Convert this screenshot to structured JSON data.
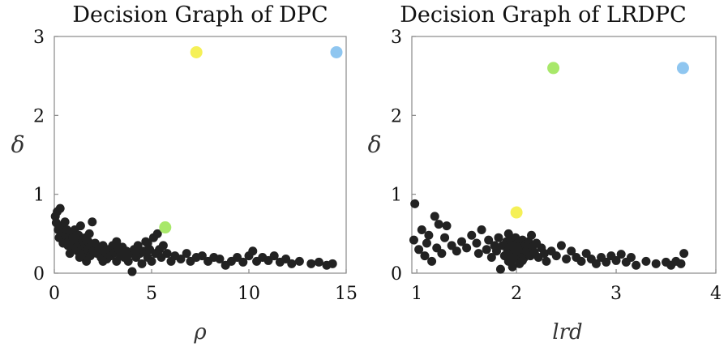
{
  "chart_data": [
    {
      "type": "scatter",
      "title": "Decision Graph of DPC",
      "xlabel": "ρ",
      "ylabel": "δ",
      "xlim": [
        0,
        15
      ],
      "ylim": [
        0,
        3
      ],
      "xticks": [
        0,
        5,
        10,
        15
      ],
      "yticks": [
        0,
        1,
        2,
        3
      ],
      "grid": false,
      "highlight_points": [
        {
          "x": 7.3,
          "y": 2.8,
          "color": "#f5f057"
        },
        {
          "x": 14.5,
          "y": 2.8,
          "color": "#8fc6f0"
        },
        {
          "x": 5.7,
          "y": 0.58,
          "color": "#a8e86a"
        }
      ],
      "points_color": "#222222",
      "points": [
        [
          0.05,
          0.72
        ],
        [
          0.1,
          0.64
        ],
        [
          0.15,
          0.78
        ],
        [
          0.3,
          0.82
        ],
        [
          0.2,
          0.55
        ],
        [
          0.25,
          0.45
        ],
        [
          0.35,
          0.6
        ],
        [
          0.4,
          0.5
        ],
        [
          0.45,
          0.38
        ],
        [
          0.5,
          0.42
        ],
        [
          0.55,
          0.65
        ],
        [
          0.6,
          0.48
        ],
        [
          0.65,
          0.55
        ],
        [
          0.7,
          0.35
        ],
        [
          0.75,
          0.47
        ],
        [
          0.8,
          0.4
        ],
        [
          0.85,
          0.52
        ],
        [
          0.9,
          0.3
        ],
        [
          0.95,
          0.45
        ],
        [
          1.0,
          0.38
        ],
        [
          1.05,
          0.55
        ],
        [
          1.1,
          0.32
        ],
        [
          1.15,
          0.42
        ],
        [
          1.2,
          0.28
        ],
        [
          1.25,
          0.48
        ],
        [
          1.3,
          0.35
        ],
        [
          1.35,
          0.6
        ],
        [
          1.4,
          0.3
        ],
        [
          1.45,
          0.42
        ],
        [
          1.5,
          0.25
        ],
        [
          1.55,
          0.38
        ],
        [
          1.6,
          0.45
        ],
        [
          1.65,
          0.15
        ],
        [
          1.7,
          0.3
        ],
        [
          1.75,
          0.4
        ],
        [
          1.8,
          0.5
        ],
        [
          1.85,
          0.22
        ],
        [
          1.9,
          0.35
        ],
        [
          1.95,
          0.65
        ],
        [
          2.0,
          0.28
        ],
        [
          2.1,
          0.38
        ],
        [
          2.2,
          0.25
        ],
        [
          2.3,
          0.32
        ],
        [
          2.4,
          0.2
        ],
        [
          2.5,
          0.35
        ],
        [
          2.6,
          0.28
        ],
        [
          2.7,
          0.18
        ],
        [
          2.8,
          0.3
        ],
        [
          2.9,
          0.22
        ],
        [
          3.0,
          0.35
        ],
        [
          3.1,
          0.26
        ],
        [
          3.2,
          0.15
        ],
        [
          3.3,
          0.3
        ],
        [
          3.4,
          0.22
        ],
        [
          3.5,
          0.33
        ],
        [
          3.6,
          0.2
        ],
        [
          3.7,
          0.28
        ],
        [
          3.8,
          0.15
        ],
        [
          3.9,
          0.25
        ],
        [
          4.0,
          0.02
        ],
        [
          4.1,
          0.3
        ],
        [
          4.2,
          0.2
        ],
        [
          4.3,
          0.35
        ],
        [
          4.4,
          0.25
        ],
        [
          4.5,
          0.12
        ],
        [
          4.6,
          0.28
        ],
        [
          4.7,
          0.4
        ],
        [
          4.8,
          0.2
        ],
        [
          4.9,
          0.3
        ],
        [
          5.0,
          0.15
        ],
        [
          5.1,
          0.45
        ],
        [
          5.2,
          0.25
        ],
        [
          5.3,
          0.5
        ],
        [
          5.4,
          0.3
        ],
        [
          5.5,
          0.2
        ],
        [
          5.6,
          0.35
        ],
        [
          5.8,
          0.25
        ],
        [
          6.0,
          0.15
        ],
        [
          6.2,
          0.22
        ],
        [
          6.5,
          0.18
        ],
        [
          6.8,
          0.25
        ],
        [
          7.0,
          0.15
        ],
        [
          7.3,
          0.2
        ],
        [
          7.6,
          0.22
        ],
        [
          7.9,
          0.15
        ],
        [
          8.2,
          0.2
        ],
        [
          8.5,
          0.18
        ],
        [
          8.8,
          0.1
        ],
        [
          9.1,
          0.15
        ],
        [
          9.4,
          0.2
        ],
        [
          9.7,
          0.14
        ],
        [
          10.0,
          0.22
        ],
        [
          10.2,
          0.28
        ],
        [
          10.4,
          0.15
        ],
        [
          10.7,
          0.2
        ],
        [
          11.0,
          0.16
        ],
        [
          11.3,
          0.22
        ],
        [
          11.6,
          0.14
        ],
        [
          11.9,
          0.18
        ],
        [
          12.2,
          0.12
        ],
        [
          12.6,
          0.15
        ],
        [
          13.2,
          0.12
        ],
        [
          13.6,
          0.14
        ],
        [
          14.0,
          0.1
        ],
        [
          14.3,
          0.12
        ],
        [
          2.5,
          0.15
        ],
        [
          3.2,
          0.4
        ],
        [
          1.3,
          0.2
        ],
        [
          0.8,
          0.25
        ],
        [
          4.8,
          0.38
        ]
      ]
    },
    {
      "type": "scatter",
      "title": "Decision Graph of LRDPC",
      "xlabel": "lrd",
      "ylabel": "δ",
      "xlim": [
        0.95,
        4
      ],
      "ylim": [
        0,
        3
      ],
      "xticks": [
        1,
        2,
        3,
        4
      ],
      "yticks": [
        0,
        1,
        2,
        3
      ],
      "grid": false,
      "highlight_points": [
        {
          "x": 2.37,
          "y": 2.6,
          "color": "#a8e86a"
        },
        {
          "x": 3.67,
          "y": 2.6,
          "color": "#8fc6f0"
        },
        {
          "x": 2.0,
          "y": 0.77,
          "color": "#f5f057"
        }
      ],
      "points_color": "#222222",
      "points": [
        [
          0.98,
          0.88
        ],
        [
          0.97,
          0.42
        ],
        [
          1.02,
          0.3
        ],
        [
          1.05,
          0.55
        ],
        [
          1.08,
          0.22
        ],
        [
          1.1,
          0.38
        ],
        [
          1.12,
          0.48
        ],
        [
          1.15,
          0.15
        ],
        [
          1.18,
          0.72
        ],
        [
          1.2,
          0.32
        ],
        [
          1.22,
          0.62
        ],
        [
          1.25,
          0.25
        ],
        [
          1.28,
          0.45
        ],
        [
          1.3,
          0.6
        ],
        [
          1.35,
          0.35
        ],
        [
          1.4,
          0.28
        ],
        [
          1.45,
          0.4
        ],
        [
          1.5,
          0.32
        ],
        [
          1.55,
          0.48
        ],
        [
          1.6,
          0.38
        ],
        [
          1.62,
          0.25
        ],
        [
          1.65,
          0.55
        ],
        [
          1.7,
          0.3
        ],
        [
          1.72,
          0.42
        ],
        [
          1.75,
          0.2
        ],
        [
          1.78,
          0.35
        ],
        [
          1.8,
          0.28
        ],
        [
          1.82,
          0.45
        ],
        [
          1.84,
          0.05
        ],
        [
          1.86,
          0.35
        ],
        [
          1.88,
          0.22
        ],
        [
          1.9,
          0.4
        ],
        [
          1.91,
          0.28
        ],
        [
          1.92,
          0.15
        ],
        [
          1.93,
          0.32
        ],
        [
          1.94,
          0.42
        ],
        [
          1.95,
          0.25
        ],
        [
          1.96,
          0.35
        ],
        [
          1.97,
          0.18
        ],
        [
          1.98,
          0.3
        ],
        [
          1.99,
          0.45
        ],
        [
          2.0,
          0.22
        ],
        [
          2.01,
          0.38
        ],
        [
          2.02,
          0.28
        ],
        [
          2.03,
          0.12
        ],
        [
          2.04,
          0.35
        ],
        [
          2.05,
          0.25
        ],
        [
          2.06,
          0.42
        ],
        [
          2.07,
          0.3
        ],
        [
          2.08,
          0.2
        ],
        [
          2.09,
          0.36
        ],
        [
          2.1,
          0.28
        ],
        [
          2.12,
          0.4
        ],
        [
          2.14,
          0.22
        ],
        [
          2.16,
          0.33
        ],
        [
          2.18,
          0.26
        ],
        [
          2.2,
          0.38
        ],
        [
          2.22,
          0.2
        ],
        [
          2.25,
          0.32
        ],
        [
          2.28,
          0.25
        ],
        [
          2.3,
          0.15
        ],
        [
          2.35,
          0.28
        ],
        [
          2.4,
          0.22
        ],
        [
          2.45,
          0.35
        ],
        [
          2.5,
          0.18
        ],
        [
          2.55,
          0.28
        ],
        [
          2.6,
          0.2
        ],
        [
          2.65,
          0.15
        ],
        [
          2.7,
          0.25
        ],
        [
          2.75,
          0.18
        ],
        [
          2.8,
          0.12
        ],
        [
          2.85,
          0.2
        ],
        [
          2.9,
          0.14
        ],
        [
          2.95,
          0.22
        ],
        [
          3.0,
          0.16
        ],
        [
          3.05,
          0.24
        ],
        [
          3.1,
          0.14
        ],
        [
          3.15,
          0.2
        ],
        [
          3.2,
          0.1
        ],
        [
          3.3,
          0.15
        ],
        [
          3.4,
          0.12
        ],
        [
          3.5,
          0.14
        ],
        [
          3.55,
          0.1
        ],
        [
          3.6,
          0.15
        ],
        [
          3.65,
          0.12
        ],
        [
          3.68,
          0.25
        ],
        [
          1.92,
          0.5
        ],
        [
          2.06,
          0.16
        ],
        [
          2.15,
          0.48
        ],
        [
          1.96,
          0.08
        ]
      ]
    }
  ]
}
